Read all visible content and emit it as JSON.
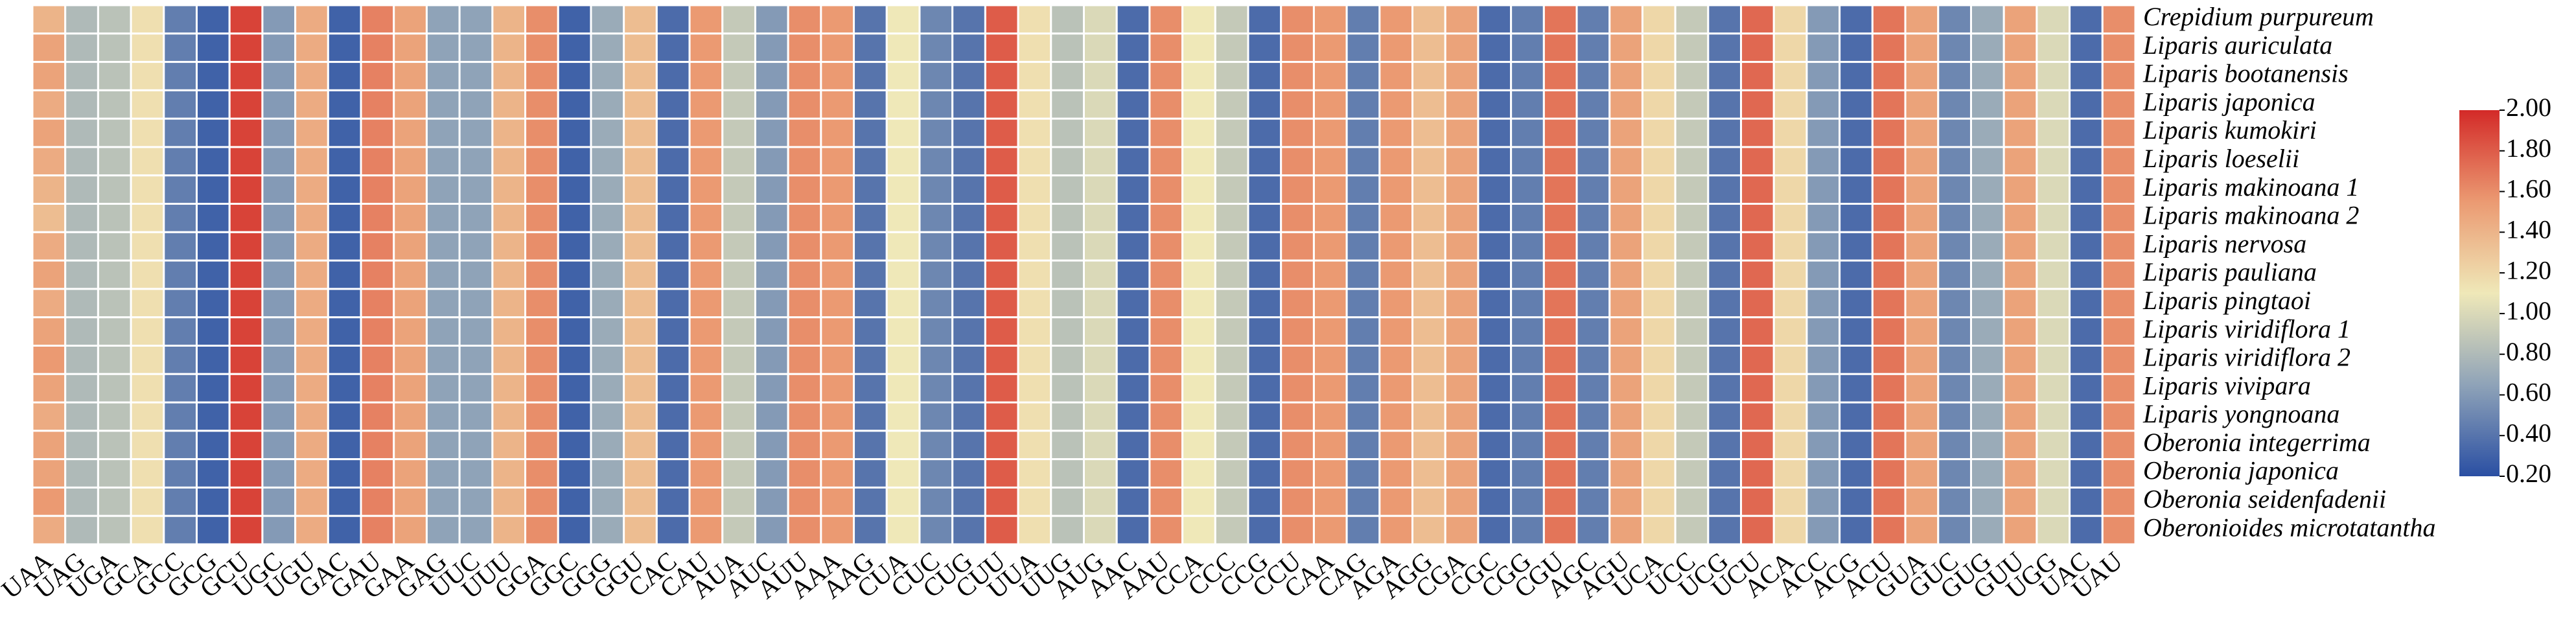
{
  "chart_data": {
    "type": "heatmap",
    "x_categories": [
      "UAA",
      "UAG",
      "UGA",
      "GCA",
      "GCC",
      "GCG",
      "GCU",
      "UGC",
      "UGU",
      "GAC",
      "GAU",
      "GAA",
      "GAG",
      "UUC",
      "UUU",
      "GGA",
      "GGC",
      "GGG",
      "GGU",
      "CAC",
      "CAU",
      "AUA",
      "AUC",
      "AUU",
      "AAA",
      "AAG",
      "CUA",
      "CUC",
      "CUG",
      "CUU",
      "UUA",
      "UUG",
      "AUG",
      "AAC",
      "AAU",
      "CCA",
      "CCC",
      "CCG",
      "CCU",
      "CAA",
      "CAG",
      "AGA",
      "AGG",
      "CGA",
      "CGC",
      "CGG",
      "CGU",
      "AGC",
      "AGU",
      "UCA",
      "UCC",
      "UCG",
      "UCU",
      "ACA",
      "ACC",
      "ACG",
      "ACU",
      "GUA",
      "GUC",
      "GUG",
      "GUU",
      "UGG",
      "UAC",
      "UAU"
    ],
    "y_categories": [
      "Crepidium purpureum",
      "Liparis auriculata",
      "Liparis bootanensis",
      "Liparis japonica",
      "Liparis kumokiri",
      "Liparis loeselii",
      "Liparis makinoana 1",
      "Liparis makinoana 2",
      "Liparis nervosa",
      "Liparis pauliana",
      "Liparis pingtaoi",
      "Liparis viridiflora 1",
      "Liparis viridiflora 2",
      "Liparis vivipara",
      "Liparis yongnoana",
      "Oberonia integerrima",
      "Oberonia japonica",
      "Oberonia seidenfadenii",
      "Oberonioides microtatantha"
    ],
    "values": [
      [
        1.4,
        0.8,
        0.85,
        1.15,
        0.45,
        0.3,
        1.9,
        0.6,
        1.45,
        0.3,
        1.65,
        1.5,
        0.65,
        0.65,
        1.4,
        1.6,
        0.3,
        0.7,
        1.35,
        0.35,
        1.55,
        0.9,
        0.6,
        1.6,
        1.55,
        0.4,
        1.1,
        0.5,
        0.4,
        1.8,
        1.15,
        0.85,
        1.0,
        0.35,
        1.6,
        1.1,
        0.9,
        0.35,
        1.6,
        1.55,
        0.45,
        1.55,
        1.35,
        1.5,
        0.35,
        0.45,
        1.7,
        0.45,
        1.5,
        1.2,
        0.9,
        0.4,
        1.75,
        1.2,
        0.6,
        0.35,
        1.7,
        1.5,
        0.5,
        0.7,
        1.5,
        1.0,
        0.35,
        1.6
      ],
      [
        1.5,
        0.8,
        0.85,
        1.15,
        0.45,
        0.3,
        1.9,
        0.6,
        1.45,
        0.3,
        1.65,
        1.5,
        0.65,
        0.65,
        1.4,
        1.6,
        0.3,
        0.7,
        1.35,
        0.35,
        1.55,
        0.9,
        0.6,
        1.6,
        1.55,
        0.4,
        1.1,
        0.5,
        0.4,
        1.8,
        1.15,
        0.85,
        1.0,
        0.35,
        1.6,
        1.1,
        0.9,
        0.35,
        1.6,
        1.55,
        0.45,
        1.55,
        1.35,
        1.5,
        0.35,
        0.45,
        1.7,
        0.45,
        1.5,
        1.2,
        0.9,
        0.4,
        1.75,
        1.2,
        0.6,
        0.35,
        1.7,
        1.5,
        0.5,
        0.7,
        1.5,
        1.0,
        0.35,
        1.6
      ],
      [
        1.5,
        0.8,
        0.85,
        1.15,
        0.45,
        0.3,
        1.9,
        0.6,
        1.45,
        0.3,
        1.65,
        1.5,
        0.65,
        0.65,
        1.4,
        1.6,
        0.3,
        0.7,
        1.35,
        0.35,
        1.55,
        0.9,
        0.6,
        1.6,
        1.55,
        0.4,
        1.1,
        0.5,
        0.4,
        1.8,
        1.15,
        0.85,
        1.0,
        0.35,
        1.6,
        1.1,
        0.9,
        0.35,
        1.6,
        1.55,
        0.45,
        1.55,
        1.35,
        1.5,
        0.35,
        0.45,
        1.7,
        0.45,
        1.5,
        1.2,
        0.9,
        0.4,
        1.75,
        1.2,
        0.6,
        0.35,
        1.7,
        1.5,
        0.5,
        0.7,
        1.5,
        1.0,
        0.35,
        1.6
      ],
      [
        1.45,
        0.8,
        0.85,
        1.15,
        0.45,
        0.3,
        1.9,
        0.6,
        1.45,
        0.3,
        1.65,
        1.5,
        0.65,
        0.65,
        1.4,
        1.6,
        0.3,
        0.7,
        1.35,
        0.35,
        1.55,
        0.9,
        0.6,
        1.6,
        1.55,
        0.4,
        1.1,
        0.5,
        0.4,
        1.8,
        1.15,
        0.85,
        1.0,
        0.35,
        1.6,
        1.1,
        0.9,
        0.35,
        1.6,
        1.55,
        0.45,
        1.55,
        1.35,
        1.5,
        0.35,
        0.45,
        1.7,
        0.45,
        1.5,
        1.2,
        0.9,
        0.4,
        1.75,
        1.2,
        0.6,
        0.35,
        1.7,
        1.5,
        0.5,
        0.7,
        1.5,
        1.0,
        0.35,
        1.6
      ],
      [
        1.5,
        0.8,
        0.85,
        1.15,
        0.45,
        0.3,
        1.9,
        0.6,
        1.45,
        0.3,
        1.65,
        1.5,
        0.65,
        0.65,
        1.4,
        1.6,
        0.3,
        0.7,
        1.35,
        0.35,
        1.55,
        0.9,
        0.6,
        1.6,
        1.55,
        0.4,
        1.1,
        0.5,
        0.4,
        1.8,
        1.15,
        0.85,
        1.0,
        0.35,
        1.6,
        1.1,
        0.9,
        0.35,
        1.6,
        1.55,
        0.45,
        1.55,
        1.35,
        1.5,
        0.35,
        0.45,
        1.7,
        0.45,
        1.5,
        1.2,
        0.9,
        0.4,
        1.75,
        1.2,
        0.6,
        0.35,
        1.7,
        1.5,
        0.5,
        0.7,
        1.5,
        1.0,
        0.35,
        1.6
      ],
      [
        1.45,
        0.8,
        0.85,
        1.15,
        0.45,
        0.3,
        1.9,
        0.6,
        1.45,
        0.3,
        1.65,
        1.5,
        0.65,
        0.65,
        1.4,
        1.6,
        0.3,
        0.7,
        1.35,
        0.35,
        1.55,
        0.9,
        0.6,
        1.6,
        1.55,
        0.4,
        1.1,
        0.5,
        0.4,
        1.8,
        1.15,
        0.85,
        1.0,
        0.35,
        1.6,
        1.1,
        0.9,
        0.35,
        1.6,
        1.55,
        0.45,
        1.55,
        1.35,
        1.5,
        0.35,
        0.45,
        1.7,
        0.45,
        1.5,
        1.2,
        0.9,
        0.4,
        1.75,
        1.2,
        0.6,
        0.35,
        1.7,
        1.5,
        0.5,
        0.7,
        1.5,
        1.0,
        0.35,
        1.6
      ],
      [
        1.4,
        0.8,
        0.85,
        1.15,
        0.45,
        0.3,
        1.9,
        0.6,
        1.45,
        0.3,
        1.65,
        1.5,
        0.65,
        0.65,
        1.4,
        1.6,
        0.3,
        0.7,
        1.35,
        0.35,
        1.55,
        0.9,
        0.6,
        1.6,
        1.55,
        0.4,
        1.1,
        0.5,
        0.4,
        1.8,
        1.15,
        0.85,
        1.0,
        0.35,
        1.6,
        1.1,
        0.9,
        0.35,
        1.6,
        1.55,
        0.45,
        1.55,
        1.35,
        1.5,
        0.35,
        0.45,
        1.7,
        0.45,
        1.5,
        1.2,
        0.9,
        0.4,
        1.75,
        1.2,
        0.6,
        0.35,
        1.7,
        1.5,
        0.5,
        0.7,
        1.5,
        1.0,
        0.35,
        1.6
      ],
      [
        1.35,
        0.8,
        0.85,
        1.15,
        0.45,
        0.3,
        1.9,
        0.6,
        1.45,
        0.3,
        1.65,
        1.5,
        0.65,
        0.65,
        1.4,
        1.6,
        0.3,
        0.7,
        1.35,
        0.35,
        1.55,
        0.9,
        0.6,
        1.6,
        1.55,
        0.4,
        1.1,
        0.5,
        0.4,
        1.8,
        1.15,
        0.85,
        1.0,
        0.35,
        1.6,
        1.1,
        0.9,
        0.35,
        1.6,
        1.55,
        0.45,
        1.55,
        1.35,
        1.5,
        0.35,
        0.45,
        1.7,
        0.45,
        1.5,
        1.2,
        0.9,
        0.4,
        1.75,
        1.2,
        0.6,
        0.35,
        1.7,
        1.5,
        0.5,
        0.7,
        1.5,
        1.0,
        0.35,
        1.6
      ],
      [
        1.45,
        0.8,
        0.85,
        1.15,
        0.45,
        0.3,
        1.9,
        0.6,
        1.45,
        0.3,
        1.65,
        1.5,
        0.65,
        0.65,
        1.4,
        1.6,
        0.3,
        0.7,
        1.35,
        0.35,
        1.55,
        0.9,
        0.6,
        1.6,
        1.55,
        0.4,
        1.1,
        0.5,
        0.4,
        1.8,
        1.15,
        0.85,
        1.0,
        0.35,
        1.6,
        1.1,
        0.9,
        0.35,
        1.6,
        1.55,
        0.45,
        1.55,
        1.35,
        1.5,
        0.35,
        0.45,
        1.7,
        0.45,
        1.5,
        1.2,
        0.9,
        0.4,
        1.75,
        1.2,
        0.6,
        0.35,
        1.7,
        1.5,
        0.5,
        0.7,
        1.5,
        1.0,
        0.35,
        1.6
      ],
      [
        1.5,
        0.8,
        0.85,
        1.15,
        0.45,
        0.3,
        1.9,
        0.6,
        1.45,
        0.3,
        1.65,
        1.5,
        0.65,
        0.65,
        1.4,
        1.6,
        0.3,
        0.7,
        1.35,
        0.35,
        1.55,
        0.9,
        0.6,
        1.6,
        1.55,
        0.4,
        1.1,
        0.5,
        0.4,
        1.8,
        1.15,
        0.85,
        1.0,
        0.35,
        1.6,
        1.1,
        0.9,
        0.35,
        1.6,
        1.55,
        0.45,
        1.55,
        1.35,
        1.5,
        0.35,
        0.45,
        1.7,
        0.45,
        1.5,
        1.2,
        0.9,
        0.4,
        1.75,
        1.2,
        0.6,
        0.35,
        1.7,
        1.5,
        0.5,
        0.7,
        1.5,
        1.0,
        0.35,
        1.6
      ],
      [
        1.45,
        0.8,
        0.85,
        1.15,
        0.45,
        0.3,
        1.9,
        0.6,
        1.45,
        0.3,
        1.65,
        1.5,
        0.65,
        0.65,
        1.4,
        1.6,
        0.3,
        0.7,
        1.35,
        0.35,
        1.55,
        0.9,
        0.6,
        1.6,
        1.55,
        0.4,
        1.1,
        0.5,
        0.4,
        1.8,
        1.15,
        0.85,
        1.0,
        0.35,
        1.6,
        1.1,
        0.9,
        0.35,
        1.6,
        1.55,
        0.45,
        1.55,
        1.35,
        1.5,
        0.35,
        0.45,
        1.7,
        0.45,
        1.5,
        1.2,
        0.9,
        0.4,
        1.75,
        1.2,
        0.6,
        0.35,
        1.7,
        1.5,
        0.5,
        0.7,
        1.5,
        1.0,
        0.35,
        1.6
      ],
      [
        1.5,
        0.8,
        0.85,
        1.15,
        0.45,
        0.3,
        1.9,
        0.6,
        1.45,
        0.3,
        1.65,
        1.5,
        0.65,
        0.65,
        1.4,
        1.6,
        0.3,
        0.7,
        1.35,
        0.35,
        1.55,
        0.9,
        0.6,
        1.6,
        1.55,
        0.4,
        1.1,
        0.5,
        0.4,
        1.8,
        1.15,
        0.85,
        1.0,
        0.35,
        1.6,
        1.1,
        0.9,
        0.35,
        1.6,
        1.55,
        0.45,
        1.55,
        1.35,
        1.5,
        0.35,
        0.45,
        1.7,
        0.45,
        1.5,
        1.2,
        0.9,
        0.4,
        1.75,
        1.2,
        0.6,
        0.35,
        1.7,
        1.5,
        0.5,
        0.7,
        1.5,
        1.0,
        0.35,
        1.6
      ],
      [
        1.55,
        0.8,
        0.85,
        1.15,
        0.45,
        0.3,
        1.9,
        0.6,
        1.45,
        0.3,
        1.65,
        1.5,
        0.65,
        0.65,
        1.4,
        1.6,
        0.3,
        0.7,
        1.35,
        0.35,
        1.55,
        0.9,
        0.6,
        1.6,
        1.55,
        0.4,
        1.1,
        0.5,
        0.4,
        1.8,
        1.15,
        0.85,
        1.0,
        0.35,
        1.6,
        1.1,
        0.9,
        0.35,
        1.6,
        1.55,
        0.45,
        1.55,
        1.35,
        1.5,
        0.35,
        0.45,
        1.7,
        0.45,
        1.5,
        1.2,
        0.9,
        0.4,
        1.75,
        1.2,
        0.6,
        0.35,
        1.7,
        1.5,
        0.5,
        0.7,
        1.5,
        1.0,
        0.35,
        1.6
      ],
      [
        1.5,
        0.8,
        0.85,
        1.15,
        0.45,
        0.3,
        1.9,
        0.6,
        1.45,
        0.3,
        1.65,
        1.5,
        0.65,
        0.65,
        1.4,
        1.6,
        0.3,
        0.7,
        1.35,
        0.35,
        1.55,
        0.9,
        0.6,
        1.6,
        1.55,
        0.4,
        1.1,
        0.5,
        0.4,
        1.8,
        1.15,
        0.85,
        1.0,
        0.35,
        1.6,
        1.1,
        0.9,
        0.35,
        1.6,
        1.55,
        0.45,
        1.55,
        1.35,
        1.5,
        0.35,
        0.45,
        1.7,
        0.45,
        1.5,
        1.2,
        0.9,
        0.4,
        1.75,
        1.2,
        0.6,
        0.35,
        1.7,
        1.5,
        0.5,
        0.7,
        1.5,
        1.0,
        0.35,
        1.6
      ],
      [
        1.45,
        0.8,
        0.85,
        1.15,
        0.45,
        0.3,
        1.9,
        0.6,
        1.45,
        0.3,
        1.65,
        1.5,
        0.65,
        0.65,
        1.4,
        1.6,
        0.3,
        0.7,
        1.35,
        0.35,
        1.55,
        0.9,
        0.6,
        1.6,
        1.55,
        0.4,
        1.1,
        0.5,
        0.4,
        1.8,
        1.15,
        0.85,
        1.0,
        0.35,
        1.6,
        1.1,
        0.9,
        0.35,
        1.6,
        1.55,
        0.45,
        1.55,
        1.35,
        1.5,
        0.35,
        0.45,
        1.7,
        0.45,
        1.5,
        1.2,
        0.9,
        0.4,
        1.75,
        1.2,
        0.6,
        0.35,
        1.7,
        1.5,
        0.5,
        0.7,
        1.5,
        1.0,
        0.35,
        1.6
      ],
      [
        1.5,
        0.8,
        0.85,
        1.15,
        0.45,
        0.3,
        1.9,
        0.6,
        1.45,
        0.3,
        1.65,
        1.5,
        0.65,
        0.65,
        1.4,
        1.6,
        0.3,
        0.7,
        1.35,
        0.35,
        1.55,
        0.9,
        0.6,
        1.6,
        1.55,
        0.4,
        1.1,
        0.5,
        0.4,
        1.8,
        1.15,
        0.85,
        1.0,
        0.35,
        1.6,
        1.1,
        0.9,
        0.35,
        1.6,
        1.55,
        0.45,
        1.55,
        1.35,
        1.5,
        0.35,
        0.45,
        1.7,
        0.45,
        1.5,
        1.2,
        0.9,
        0.4,
        1.75,
        1.2,
        0.6,
        0.35,
        1.7,
        1.5,
        0.5,
        0.7,
        1.5,
        1.0,
        0.35,
        1.6
      ],
      [
        1.5,
        0.8,
        0.85,
        1.15,
        0.45,
        0.3,
        1.9,
        0.6,
        1.45,
        0.3,
        1.65,
        1.5,
        0.65,
        0.65,
        1.4,
        1.6,
        0.3,
        0.7,
        1.35,
        0.35,
        1.55,
        0.9,
        0.6,
        1.6,
        1.55,
        0.4,
        1.1,
        0.5,
        0.4,
        1.8,
        1.15,
        0.85,
        1.0,
        0.35,
        1.6,
        1.1,
        0.9,
        0.35,
        1.6,
        1.55,
        0.45,
        1.55,
        1.35,
        1.5,
        0.35,
        0.45,
        1.7,
        0.45,
        1.5,
        1.2,
        0.9,
        0.4,
        1.75,
        1.2,
        0.6,
        0.35,
        1.7,
        1.5,
        0.5,
        0.7,
        1.5,
        1.0,
        0.35,
        1.6
      ],
      [
        1.55,
        0.8,
        0.85,
        1.15,
        0.45,
        0.3,
        1.9,
        0.6,
        1.45,
        0.3,
        1.65,
        1.5,
        0.65,
        0.65,
        1.4,
        1.6,
        0.3,
        0.7,
        1.35,
        0.35,
        1.55,
        0.9,
        0.6,
        1.6,
        1.55,
        0.4,
        1.1,
        0.5,
        0.4,
        1.8,
        1.15,
        0.85,
        1.0,
        0.35,
        1.6,
        1.1,
        0.9,
        0.35,
        1.6,
        1.55,
        0.45,
        1.55,
        1.35,
        1.5,
        0.35,
        0.45,
        1.7,
        0.45,
        1.5,
        1.2,
        0.9,
        0.4,
        1.75,
        1.2,
        0.6,
        0.35,
        1.7,
        1.5,
        0.5,
        0.7,
        1.5,
        1.0,
        0.35,
        1.6
      ],
      [
        1.45,
        0.8,
        0.85,
        1.15,
        0.45,
        0.3,
        1.9,
        0.6,
        1.45,
        0.3,
        1.65,
        1.5,
        0.65,
        0.65,
        1.4,
        1.6,
        0.3,
        0.7,
        1.35,
        0.35,
        1.55,
        0.9,
        0.6,
        1.6,
        1.55,
        0.4,
        1.1,
        0.5,
        0.4,
        1.8,
        1.15,
        0.85,
        1.0,
        0.35,
        1.6,
        1.1,
        0.9,
        0.35,
        1.6,
        1.55,
        0.45,
        1.55,
        1.35,
        1.5,
        0.35,
        0.45,
        1.7,
        0.45,
        1.5,
        1.2,
        0.9,
        0.4,
        1.75,
        1.2,
        0.6,
        0.35,
        1.7,
        1.5,
        0.5,
        0.7,
        1.5,
        1.0,
        0.35,
        1.6
      ]
    ],
    "colors": [
      "#2a4fa3",
      "#8fa3b8",
      "#efe8b8",
      "#eb9a72",
      "#d32a28"
    ],
    "zlim": [
      0.2,
      2.0
    ],
    "colorbar_ticks": [
      {
        "value": 0.2,
        "label": "0.20"
      },
      {
        "value": 0.4,
        "label": "0.40"
      },
      {
        "value": 0.6,
        "label": "0.60"
      },
      {
        "value": 0.8,
        "label": "0.80"
      },
      {
        "value": 1.0,
        "label": "1.00"
      },
      {
        "value": 1.2,
        "label": "1.20"
      },
      {
        "value": 1.4,
        "label": "1.40"
      },
      {
        "value": 1.6,
        "label": "1.60"
      },
      {
        "value": 1.8,
        "label": "1.80"
      },
      {
        "value": 2.0,
        "label": "2.00"
      }
    ]
  }
}
